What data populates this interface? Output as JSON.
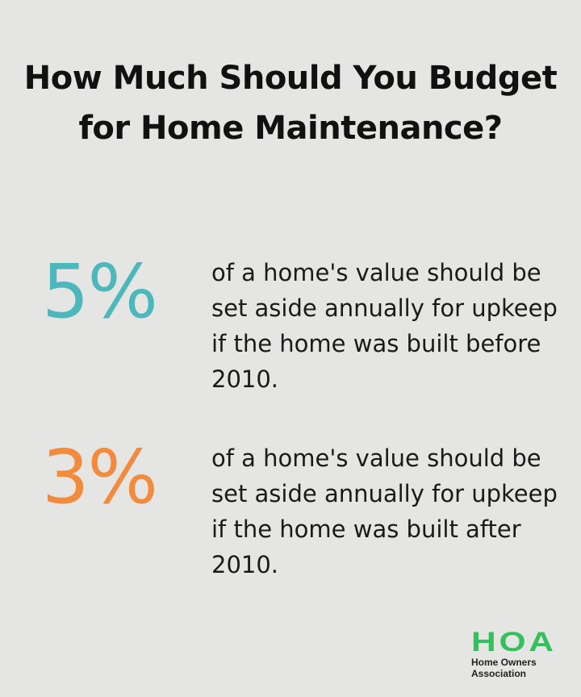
{
  "title": "How Much Should You Budget for Home Maintenance?",
  "stats": [
    {
      "value": "5%",
      "color": "#4db8bc",
      "description": "of a home's value should be set aside annually for upkeep if the home was built before 2010."
    },
    {
      "value": "3%",
      "color": "#f28b3d",
      "description": "of a home's value should be set aside annually for upkeep if the home was built after 2010."
    }
  ],
  "logo": {
    "mark": "HOA",
    "line1": "Home Owners",
    "line2": "Association",
    "color": "#34c05a"
  }
}
